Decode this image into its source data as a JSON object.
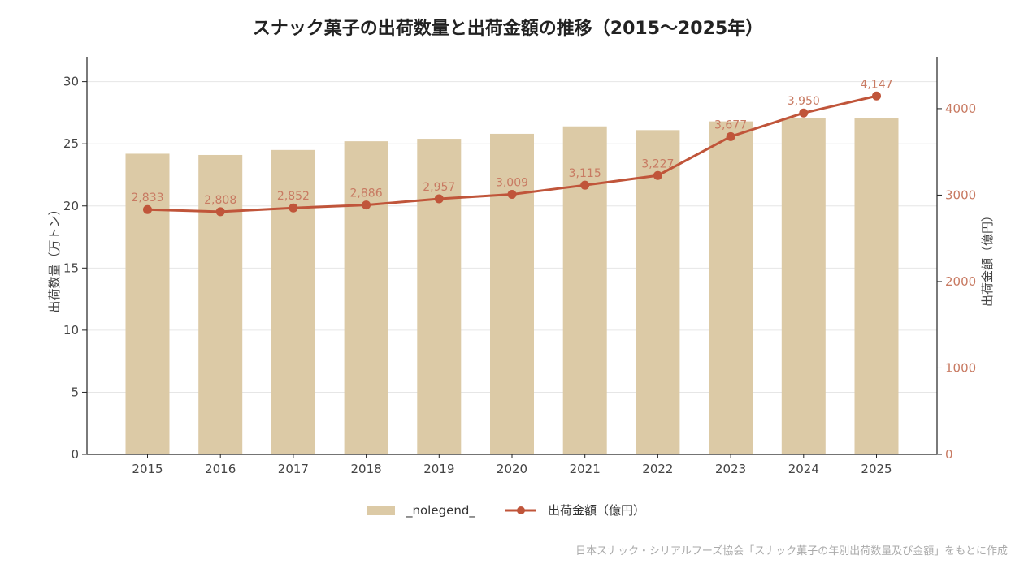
{
  "chart_data": {
    "type": "bar",
    "title": "スナック菓子の出荷数量と出荷金額の推移（2015〜2025年）",
    "categories": [
      "2015",
      "2016",
      "2017",
      "2018",
      "2019",
      "2020",
      "2021",
      "2022",
      "2023",
      "2024",
      "2025"
    ],
    "series": [
      {
        "name": "_nolegend_",
        "type": "bar",
        "axis": "left",
        "values": [
          24.2,
          24.1,
          24.5,
          25.2,
          25.4,
          25.8,
          26.4,
          26.1,
          26.8,
          27.1,
          27.1
        ]
      },
      {
        "name": "出荷金額（億円）",
        "type": "line",
        "axis": "right",
        "values": [
          2833,
          2808,
          2852,
          2886,
          2957,
          3009,
          3115,
          3227,
          3677,
          3950,
          4147
        ],
        "labels": [
          "2,833",
          "2,808",
          "2,852",
          "2,886",
          "2,957",
          "3,009",
          "3,115",
          "3,227",
          "3,677",
          "3,950",
          "4,147"
        ]
      }
    ],
    "ylabel": "出荷数量（万トン）",
    "y2label": "出荷金額（億円）",
    "ylim": [
      0,
      32
    ],
    "y2lim": [
      0,
      4600
    ],
    "yticks": [
      "0",
      "5",
      "10",
      "15",
      "20",
      "25",
      "30"
    ],
    "y2ticks": [
      "0",
      "1000",
      "2000",
      "3000",
      "4000"
    ],
    "grid": true,
    "legend_position": "bottom-center",
    "source": "日本スナック・シリアルフーズ協会「スナック菓子の年別出荷数量及び金額」をもとに作成"
  },
  "colors": {
    "bar": "#dccaa6",
    "line": "#c0553a",
    "right_axis": "#c87a62",
    "grid": "#e6e6e6",
    "axis": "#222222"
  }
}
